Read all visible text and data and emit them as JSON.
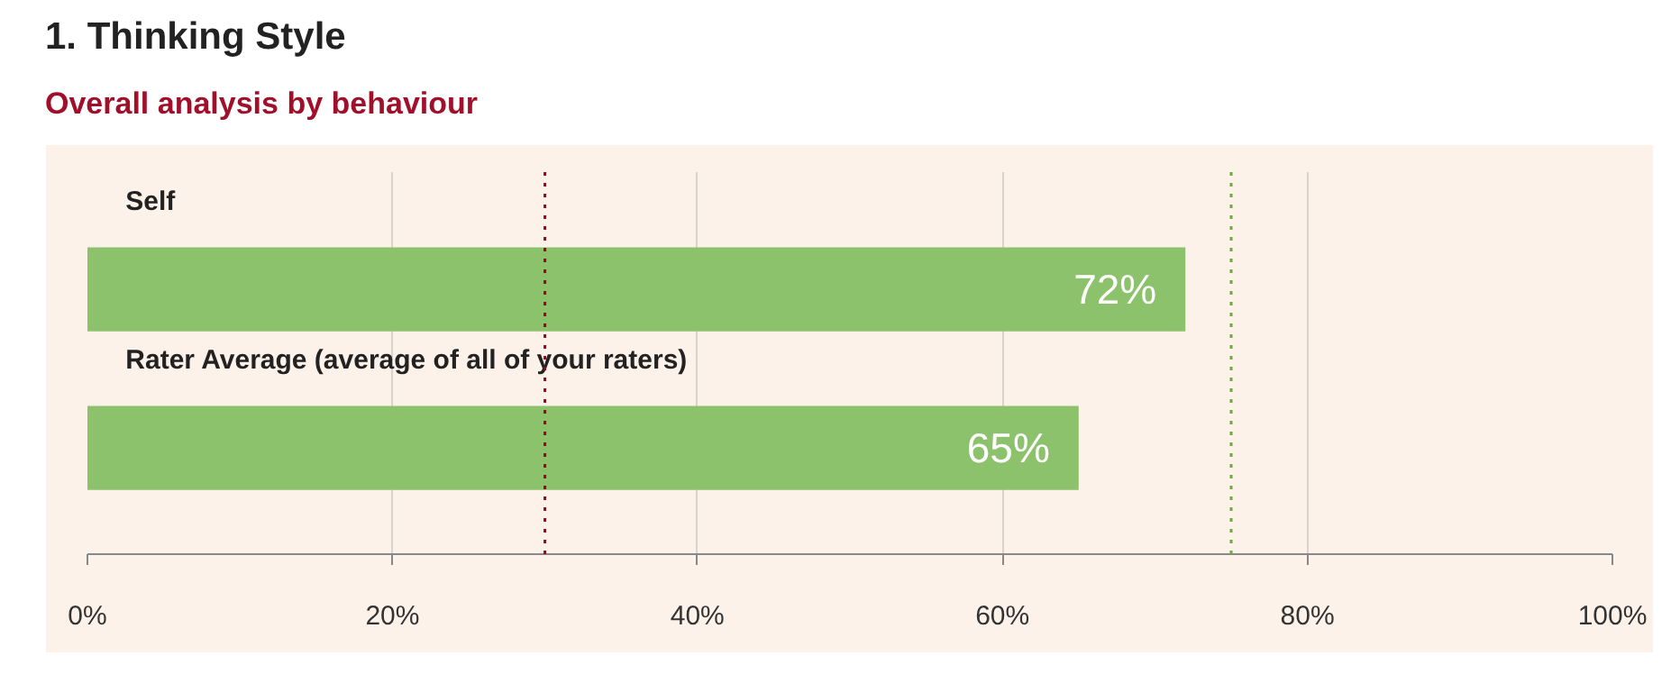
{
  "chart_data": {
    "type": "bar",
    "title": "1. Thinking Style",
    "subtitle": "Overall analysis by behaviour",
    "orientation": "horizontal",
    "categories": [
      "Self",
      "Rater Average (average of all of your raters)"
    ],
    "values": [
      72,
      65
    ],
    "color": "#8dc26d",
    "value_labels": [
      "72%",
      "65%"
    ],
    "xlim": [
      0,
      100
    ],
    "xticks": [
      {
        "value": 0,
        "label": "0%"
      },
      {
        "value": 20,
        "label": "20%"
      },
      {
        "value": 40,
        "label": "40%"
      },
      {
        "value": 60,
        "label": "60%"
      },
      {
        "value": 80,
        "label": "80%"
      },
      {
        "value": 100,
        "label": "100%"
      }
    ],
    "grid": "x",
    "ref_lines": [
      {
        "axis": "x",
        "value": 30,
        "color": "#a0001e",
        "line_style": "dotted"
      },
      {
        "axis": "x",
        "value": 75,
        "color": "#6aab3c",
        "line_style": "dotted"
      }
    ]
  }
}
